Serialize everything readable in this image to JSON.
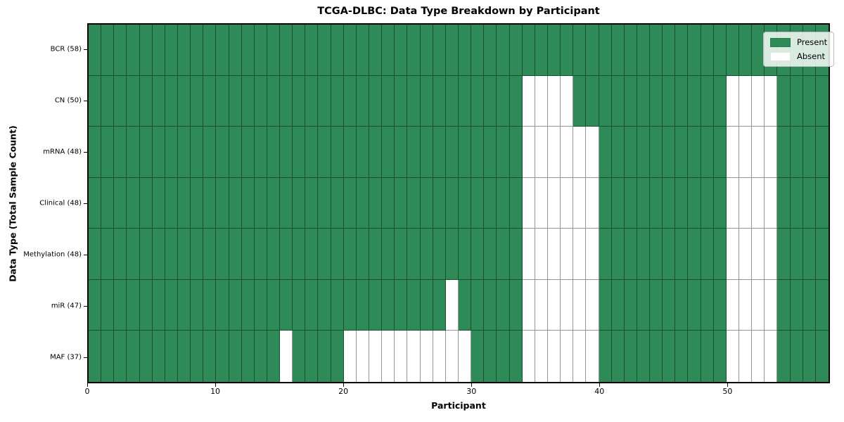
{
  "figure": {
    "title": "TCGA-DLBC: Data Type Breakdown by Participant",
    "xlabel": "Participant",
    "ylabel": "Data Type (Total Sample Count)"
  },
  "legend": {
    "items": [
      {
        "name": "present",
        "label": "Present",
        "color": "#2e8b57"
      },
      {
        "name": "absent",
        "label": "Absent",
        "color": "#ffffff"
      }
    ]
  },
  "chart_data": {
    "type": "heatmap",
    "title": "TCGA-DLBC: Data Type Breakdown by Participant",
    "xlabel": "Participant",
    "ylabel": "Data Type (Total Sample Count)",
    "n_participants": 58,
    "x_ticks": [
      0,
      10,
      20,
      30,
      40,
      50
    ],
    "xlim": [
      0,
      58
    ],
    "grid": true,
    "legend_position": "upper right",
    "present_color": "#2e8b57",
    "absent_color": "#ffffff",
    "cell_values": {
      "present": 1,
      "absent": 0
    },
    "rows": [
      {
        "data_type": "BCR",
        "label": "BCR (58)",
        "total_samples": 58,
        "absent_participants": []
      },
      {
        "data_type": "CN",
        "label": "CN (50)",
        "total_samples": 50,
        "absent_participants": [
          34,
          35,
          36,
          37,
          50,
          51,
          52,
          53
        ]
      },
      {
        "data_type": "mRNA",
        "label": "mRNA (48)",
        "total_samples": 48,
        "absent_participants": [
          34,
          35,
          36,
          37,
          38,
          39,
          50,
          51,
          52,
          53
        ]
      },
      {
        "data_type": "Clinical",
        "label": "Clinical (48)",
        "total_samples": 48,
        "absent_participants": [
          34,
          35,
          36,
          37,
          38,
          39,
          50,
          51,
          52,
          53
        ]
      },
      {
        "data_type": "Methylation",
        "label": "Methylation (48)",
        "total_samples": 48,
        "absent_participants": [
          34,
          35,
          36,
          37,
          38,
          39,
          50,
          51,
          52,
          53
        ]
      },
      {
        "data_type": "miR",
        "label": "miR (47)",
        "total_samples": 47,
        "absent_participants": [
          28,
          34,
          35,
          36,
          37,
          38,
          39,
          50,
          51,
          52,
          53
        ]
      },
      {
        "data_type": "MAF",
        "label": "MAF (37)",
        "total_samples": 37,
        "absent_participants": [
          15,
          20,
          21,
          22,
          23,
          24,
          25,
          26,
          27,
          28,
          29,
          34,
          35,
          36,
          37,
          38,
          39,
          50,
          51,
          52,
          53
        ]
      }
    ]
  }
}
